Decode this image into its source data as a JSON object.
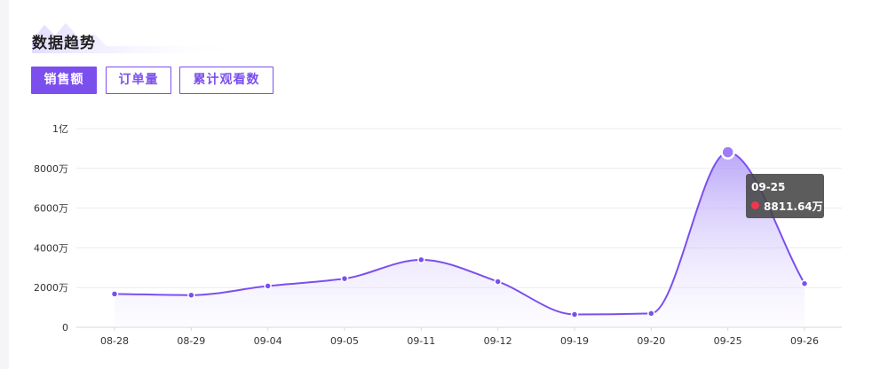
{
  "section": {
    "title": "数据趋势"
  },
  "tabs": [
    {
      "label": "销售额",
      "active": true
    },
    {
      "label": "订单量",
      "active": false
    },
    {
      "label": "累计观看数",
      "active": false
    }
  ],
  "colors": {
    "accent": "#7b4fee",
    "tooltip_dot": "#f0364f"
  },
  "chart_data": {
    "type": "area",
    "x": [
      "08-28",
      "08-29",
      "09-04",
      "09-05",
      "09-11",
      "09-12",
      "09-19",
      "09-20",
      "09-25",
      "09-26"
    ],
    "values": [
      1680,
      1620,
      2080,
      2450,
      3400,
      2300,
      650,
      700,
      8811.64,
      2200
    ],
    "ylim": [
      0,
      10000
    ],
    "yticks": [
      {
        "value": 0,
        "label": "0"
      },
      {
        "value": 2000,
        "label": "2000万"
      },
      {
        "value": 4000,
        "label": "4000万"
      },
      {
        "value": 6000,
        "label": "6000万"
      },
      {
        "value": 8000,
        "label": "8000万"
      },
      {
        "value": 10000,
        "label": "1亿"
      }
    ],
    "grid": true,
    "highlight_index": 8,
    "tooltip": {
      "date": "09-25",
      "value": "8811.64万"
    }
  }
}
